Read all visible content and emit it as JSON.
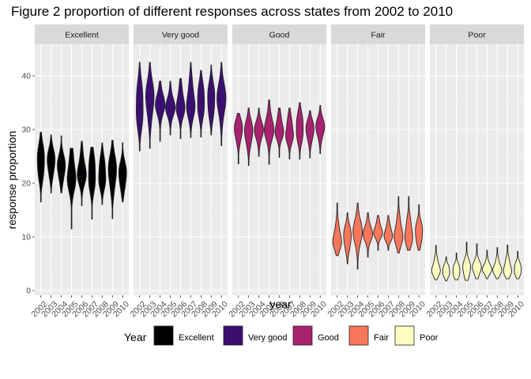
{
  "chart_data": {
    "type": "violin",
    "title": "Figure 2 proportion of different responses across states from 2002 to 2010",
    "xlabel": "year",
    "ylabel": "response proportion",
    "ylim": [
      0,
      45
    ],
    "yticks": [
      0,
      10,
      20,
      30,
      40
    ],
    "categories": [
      "2002",
      "2003",
      "2004",
      "2005",
      "2006",
      "2007",
      "2008",
      "2009",
      "2010"
    ],
    "grid": true,
    "legend": {
      "title": "Year",
      "position": "bottom",
      "entries": [
        "Excellent",
        "Very good",
        "Good",
        "Fair",
        "Poor"
      ]
    },
    "panels": [
      {
        "name": "Excellent",
        "color": "#000004",
        "series": [
          {
            "year": "2002",
            "min": 16.5,
            "max": 29.5,
            "median": 23.5
          },
          {
            "year": "2003",
            "min": 18.2,
            "max": 29.0,
            "median": 23.5
          },
          {
            "year": "2004",
            "min": 18.2,
            "max": 28.8,
            "median": 22.5
          },
          {
            "year": "2005",
            "min": 11.5,
            "max": 26.5,
            "median": 21.5
          },
          {
            "year": "2006",
            "min": 15.8,
            "max": 27.8,
            "median": 22.0
          },
          {
            "year": "2007",
            "min": 13.3,
            "max": 26.7,
            "median": 21.5
          },
          {
            "year": "2008",
            "min": 16.0,
            "max": 27.5,
            "median": 21.5
          },
          {
            "year": "2009",
            "min": 13.4,
            "max": 28.0,
            "median": 21.5
          },
          {
            "year": "2010",
            "min": 16.5,
            "max": 27.5,
            "median": 21.0
          }
        ]
      },
      {
        "name": "Very good",
        "color": "#3b0f70",
        "series": [
          {
            "year": "2002",
            "min": 26.0,
            "max": 42.5,
            "median": 34.0
          },
          {
            "year": "2003",
            "min": 26.5,
            "max": 42.5,
            "median": 35.0
          },
          {
            "year": "2004",
            "min": 27.8,
            "max": 39.0,
            "median": 34.5
          },
          {
            "year": "2005",
            "min": 29.0,
            "max": 39.0,
            "median": 34.0
          },
          {
            "year": "2006",
            "min": 28.3,
            "max": 39.5,
            "median": 34.5
          },
          {
            "year": "2007",
            "min": 28.5,
            "max": 42.5,
            "median": 35.0
          },
          {
            "year": "2008",
            "min": 28.6,
            "max": 41.0,
            "median": 35.0
          },
          {
            "year": "2009",
            "min": 29.0,
            "max": 42.0,
            "median": 35.0
          },
          {
            "year": "2010",
            "min": 27.0,
            "max": 42.5,
            "median": 35.0
          }
        ]
      },
      {
        "name": "Good",
        "color": "#a8226f",
        "series": [
          {
            "year": "2002",
            "min": 23.6,
            "max": 33.0,
            "median": 29.5
          },
          {
            "year": "2003",
            "min": 23.3,
            "max": 34.0,
            "median": 29.0
          },
          {
            "year": "2004",
            "min": 25.0,
            "max": 34.0,
            "median": 29.5
          },
          {
            "year": "2005",
            "min": 23.5,
            "max": 35.5,
            "median": 30.0
          },
          {
            "year": "2006",
            "min": 24.8,
            "max": 34.0,
            "median": 30.0
          },
          {
            "year": "2007",
            "min": 24.5,
            "max": 34.0,
            "median": 29.5
          },
          {
            "year": "2008",
            "min": 24.5,
            "max": 35.0,
            "median": 30.0
          },
          {
            "year": "2009",
            "min": 24.7,
            "max": 33.5,
            "median": 29.5
          },
          {
            "year": "2010",
            "min": 25.5,
            "max": 34.5,
            "median": 30.0
          }
        ]
      },
      {
        "name": "Fair",
        "color": "#f8765c",
        "series": [
          {
            "year": "2002",
            "min": 6.5,
            "max": 16.3,
            "median": 9.5
          },
          {
            "year": "2003",
            "min": 5.0,
            "max": 14.5,
            "median": 9.5
          },
          {
            "year": "2004",
            "min": 4.0,
            "max": 16.3,
            "median": 10.5
          },
          {
            "year": "2005",
            "min": 6.2,
            "max": 14.5,
            "median": 10.5
          },
          {
            "year": "2006",
            "min": 7.5,
            "max": 14.0,
            "median": 11.0
          },
          {
            "year": "2007",
            "min": 7.5,
            "max": 14.0,
            "median": 10.5
          },
          {
            "year": "2008",
            "min": 7.0,
            "max": 17.5,
            "median": 10.5
          },
          {
            "year": "2009",
            "min": 7.5,
            "max": 17.5,
            "median": 10.5
          },
          {
            "year": "2010",
            "min": 7.5,
            "max": 16.0,
            "median": 10.5
          }
        ]
      },
      {
        "name": "Poor",
        "color": "#fcfdbf",
        "series": [
          {
            "year": "2002",
            "min": 2.0,
            "max": 8.4,
            "median": 4.0
          },
          {
            "year": "2003",
            "min": 1.8,
            "max": 6.3,
            "median": 3.5
          },
          {
            "year": "2004",
            "min": 2.0,
            "max": 7.0,
            "median": 3.5
          },
          {
            "year": "2005",
            "min": 1.9,
            "max": 9.0,
            "median": 3.8
          },
          {
            "year": "2006",
            "min": 2.2,
            "max": 8.7,
            "median": 4.0
          },
          {
            "year": "2007",
            "min": 2.2,
            "max": 7.5,
            "median": 4.0
          },
          {
            "year": "2008",
            "min": 2.2,
            "max": 8.0,
            "median": 4.0
          },
          {
            "year": "2009",
            "min": 2.2,
            "max": 8.5,
            "median": 4.0
          },
          {
            "year": "2010",
            "min": 2.2,
            "max": 7.3,
            "median": 3.8
          }
        ]
      }
    ]
  }
}
